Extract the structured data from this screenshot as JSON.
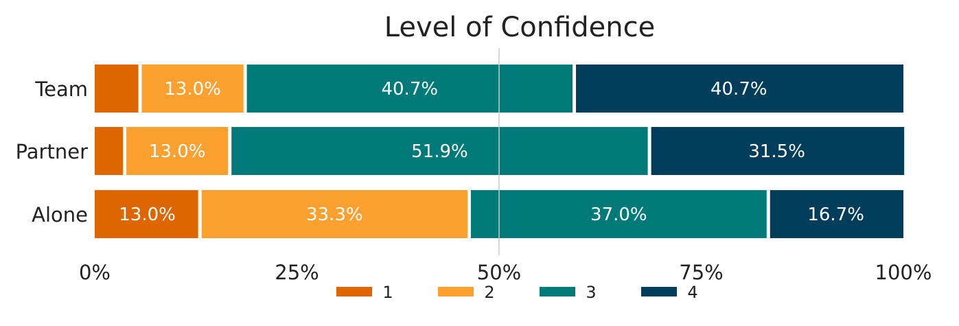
{
  "chart_data": {
    "type": "bar",
    "orientation": "horizontal",
    "stacked": true,
    "title": "Level of Confidence",
    "categories": [
      "Team",
      "Partner",
      "Alone"
    ],
    "series": [
      {
        "name": "1",
        "color": "#dd6600",
        "values": [
          5.6,
          3.7,
          13.0
        ],
        "labels": [
          "",
          "",
          "13.0%"
        ]
      },
      {
        "name": "2",
        "color": "#fca030",
        "values": [
          13.0,
          13.0,
          33.3
        ],
        "labels": [
          "13.0%",
          "13.0%",
          "33.3%"
        ]
      },
      {
        "name": "3",
        "color": "#007a79",
        "values": [
          40.7,
          51.9,
          37.0
        ],
        "labels": [
          "40.7%",
          "51.9%",
          "37.0%"
        ]
      },
      {
        "name": "4",
        "color": "#003d5b",
        "values": [
          40.7,
          31.5,
          16.7
        ],
        "labels": [
          "40.7%",
          "31.5%",
          "16.7%"
        ]
      }
    ],
    "xlim": [
      0,
      100
    ],
    "xticks": [
      0,
      25,
      50,
      75,
      100
    ],
    "xtick_labels": [
      "0%",
      "25%",
      "50%",
      "75%",
      "100%"
    ],
    "reference_line": 50,
    "legend_position": "bottom"
  }
}
